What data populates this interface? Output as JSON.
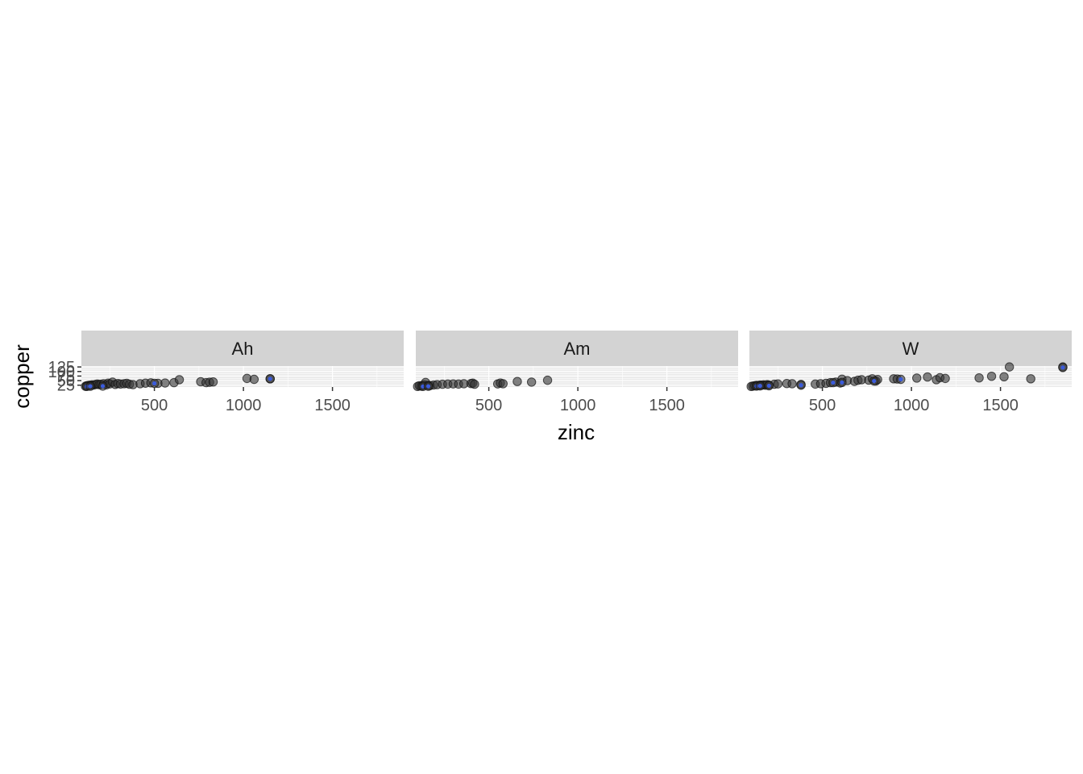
{
  "chart_data": {
    "type": "scatter",
    "xlabel": "zinc",
    "ylabel": "copper",
    "xlim": [
      90,
      1900
    ],
    "ylim": [
      15,
      130
    ],
    "x_ticks": [
      500,
      1000,
      1500
    ],
    "x_tick_labels": [
      "500",
      "1000",
      "1500"
    ],
    "y_ticks": [
      25,
      50,
      75,
      100,
      125
    ],
    "y_tick_labels": [
      "25",
      "50",
      "75",
      "100",
      "125"
    ],
    "grid": true,
    "colors": {
      "panel_bg": "#ebebeb",
      "strip_bg": "#d3d3d3",
      "grid": "#ffffff",
      "point": "#333333",
      "highlight": "#3b5bdb"
    },
    "panels": [
      {
        "strip": "Ah",
        "points": [
          [
            113,
            19
          ],
          [
            120,
            22
          ],
          [
            130,
            24
          ],
          [
            140,
            25
          ],
          [
            150,
            27
          ],
          [
            160,
            26
          ],
          [
            170,
            29
          ],
          [
            180,
            31
          ],
          [
            190,
            28
          ],
          [
            200,
            30
          ],
          [
            215,
            33
          ],
          [
            230,
            27
          ],
          [
            240,
            36
          ],
          [
            250,
            32
          ],
          [
            265,
            42
          ],
          [
            280,
            29
          ],
          [
            295,
            34
          ],
          [
            310,
            31
          ],
          [
            330,
            33
          ],
          [
            345,
            35
          ],
          [
            360,
            30
          ],
          [
            380,
            28
          ],
          [
            420,
            33
          ],
          [
            450,
            36
          ],
          [
            480,
            38
          ],
          [
            520,
            35
          ],
          [
            560,
            37
          ],
          [
            610,
            39
          ],
          [
            640,
            55
          ],
          [
            760,
            44
          ],
          [
            790,
            39
          ],
          [
            810,
            41
          ],
          [
            830,
            43
          ],
          [
            1020,
            62
          ],
          [
            1060,
            57
          ],
          [
            1150,
            60
          ]
        ],
        "highlighted": [
          [
            120,
            18
          ],
          [
            140,
            19
          ],
          [
            210,
            20
          ],
          [
            500,
            35
          ],
          [
            1150,
            60
          ]
        ]
      },
      {
        "strip": "Am",
        "points": [
          [
            100,
            18
          ],
          [
            110,
            22
          ],
          [
            120,
            20
          ],
          [
            130,
            25
          ],
          [
            140,
            27
          ],
          [
            145,
            40
          ],
          [
            160,
            24
          ],
          [
            170,
            23
          ],
          [
            190,
            26
          ],
          [
            210,
            28
          ],
          [
            240,
            30
          ],
          [
            270,
            31
          ],
          [
            300,
            32
          ],
          [
            330,
            31
          ],
          [
            360,
            33
          ],
          [
            400,
            34
          ],
          [
            410,
            36
          ],
          [
            420,
            30
          ],
          [
            550,
            32
          ],
          [
            565,
            37
          ],
          [
            580,
            33
          ],
          [
            660,
            45
          ],
          [
            740,
            42
          ],
          [
            830,
            52
          ]
        ],
        "highlighted": [
          [
            130,
            18
          ],
          [
            160,
            19
          ]
        ]
      },
      {
        "strip": "W",
        "points": [
          [
            100,
            18
          ],
          [
            110,
            20
          ],
          [
            120,
            22
          ],
          [
            130,
            24
          ],
          [
            140,
            23
          ],
          [
            150,
            26
          ],
          [
            160,
            25
          ],
          [
            170,
            27
          ],
          [
            180,
            25
          ],
          [
            190,
            28
          ],
          [
            200,
            26
          ],
          [
            230,
            30
          ],
          [
            250,
            32
          ],
          [
            300,
            34
          ],
          [
            330,
            33
          ],
          [
            380,
            29
          ],
          [
            460,
            31
          ],
          [
            490,
            33
          ],
          [
            520,
            35
          ],
          [
            545,
            39
          ],
          [
            575,
            42
          ],
          [
            600,
            37
          ],
          [
            610,
            58
          ],
          [
            640,
            50
          ],
          [
            680,
            46
          ],
          [
            700,
            52
          ],
          [
            720,
            55
          ],
          [
            760,
            53
          ],
          [
            780,
            60
          ],
          [
            800,
            48
          ],
          [
            810,
            56
          ],
          [
            900,
            60
          ],
          [
            920,
            59
          ],
          [
            1030,
            64
          ],
          [
            1090,
            70
          ],
          [
            1140,
            55
          ],
          [
            1160,
            66
          ],
          [
            1190,
            62
          ],
          [
            1380,
            65
          ],
          [
            1450,
            74
          ],
          [
            1520,
            71
          ],
          [
            1550,
            125
          ],
          [
            1670,
            60
          ],
          [
            1850,
            125
          ]
        ],
        "highlighted": [
          [
            130,
            20
          ],
          [
            150,
            21
          ],
          [
            200,
            22
          ],
          [
            380,
            25
          ],
          [
            560,
            39
          ],
          [
            610,
            40
          ],
          [
            790,
            48
          ],
          [
            940,
            57
          ],
          [
            1850,
            122
          ]
        ]
      }
    ]
  }
}
